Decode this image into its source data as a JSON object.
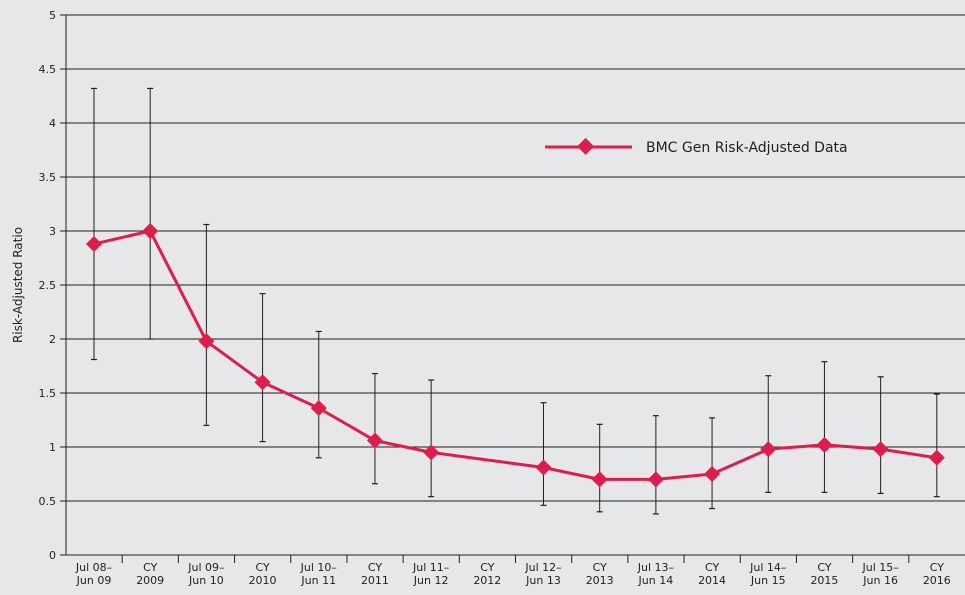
{
  "chart_data": {
    "type": "line",
    "title": "",
    "xlabel": "",
    "ylabel": "Risk-Adjusted Ratio",
    "ylim": [
      0,
      5
    ],
    "yticks": [
      "0",
      "0.5",
      "1",
      "1.5",
      "2",
      "2.5",
      "3",
      "3.5",
      "4",
      "4.5",
      "5"
    ],
    "grid": "horizontal",
    "legend_position": "top-right",
    "line_color": "#e31b4b",
    "categories": [
      [
        "Jul 08–",
        "Jun 09"
      ],
      [
        "CY",
        "2009"
      ],
      [
        "Jul 09–",
        "Jun 10"
      ],
      [
        "CY",
        "2010"
      ],
      [
        "Jul 10–",
        "Jun 11"
      ],
      [
        "CY",
        "2011"
      ],
      [
        "Jul 11–",
        "Jun 12"
      ],
      [
        "CY",
        "2012"
      ],
      [
        "Jul 12–",
        "Jun 13"
      ],
      [
        "CY",
        "2013"
      ],
      [
        "Jul 13–",
        "Jun 14"
      ],
      [
        "CY",
        "2014"
      ],
      [
        "Jul 14–",
        "Jun 15"
      ],
      [
        "CY",
        "2015"
      ],
      [
        "Jul 15–",
        "Jun 16"
      ],
      [
        "CY",
        "2016"
      ]
    ],
    "series": [
      {
        "name": "BMC Gen Risk-Adjusted Data",
        "values": [
          2.88,
          3.0,
          1.98,
          1.6,
          1.36,
          1.06,
          0.95,
          null,
          0.81,
          0.7,
          0.7,
          0.75,
          0.98,
          1.02,
          0.98,
          0.9
        ],
        "lower": [
          1.81,
          2.0,
          1.2,
          1.05,
          0.9,
          0.66,
          0.54,
          null,
          0.46,
          0.4,
          0.38,
          0.43,
          0.58,
          0.58,
          0.57,
          0.54
        ],
        "upper": [
          4.32,
          4.32,
          3.06,
          2.42,
          2.07,
          1.68,
          1.62,
          null,
          1.41,
          1.21,
          1.29,
          1.27,
          1.66,
          1.79,
          1.65,
          1.49
        ]
      }
    ]
  }
}
